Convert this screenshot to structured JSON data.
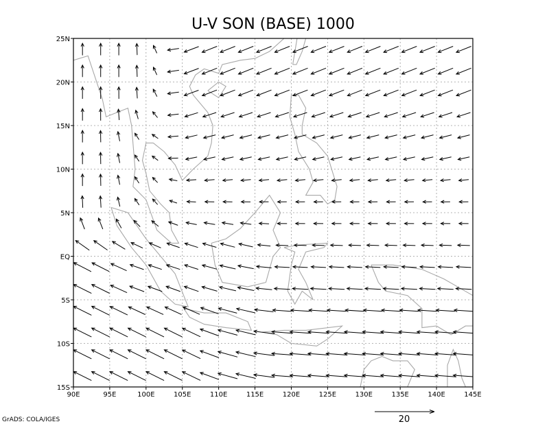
{
  "chart_data": {
    "type": "vector",
    "title": "U-V SON (BASE) 1000",
    "credit": "GrADS: COLA/IGES",
    "x_ticks": [
      "90E",
      "95E",
      "100E",
      "105E",
      "110E",
      "115E",
      "120E",
      "125E",
      "130E",
      "135E",
      "140E",
      "145E"
    ],
    "y_ticks": [
      "25N",
      "20N",
      "15N",
      "10N",
      "5N",
      "EQ",
      "5S",
      "10S",
      "15S"
    ],
    "xlim": [
      90,
      145
    ],
    "ylim": [
      -15,
      25
    ],
    "grid": true,
    "reference_vector": {
      "magnitude": "20",
      "placement": "bottom-right"
    },
    "vector_grid_spacing_deg": 2.5,
    "vector_field_regions": [
      {
        "region": "northeast",
        "lon": [
          105,
          145
        ],
        "lat": [
          13,
          25
        ],
        "u": -10,
        "v": -4
      },
      {
        "region": "central",
        "lon": [
          100,
          145
        ],
        "lat": [
          -2,
          13
        ],
        "u": -6,
        "v": 0
      },
      {
        "region": "west-north",
        "lon": [
          90,
          100
        ],
        "lat": [
          5,
          25
        ],
        "u": 0,
        "v": 8
      },
      {
        "region": "southwest",
        "lon": [
          90,
          112
        ],
        "lat": [
          -15,
          0
        ],
        "u": -12,
        "v": 6
      },
      {
        "region": "southeast",
        "lon": [
          112,
          145
        ],
        "lat": [
          -15,
          -2
        ],
        "u": -14,
        "v": 1
      }
    ],
    "coastlines": [
      [
        [
          90,
          22.5
        ],
        [
          92,
          23
        ],
        [
          94,
          18
        ],
        [
          94.5,
          16
        ],
        [
          96,
          16.5
        ],
        [
          97.5,
          17
        ],
        [
          98,
          15
        ],
        [
          98.3,
          12
        ],
        [
          98.5,
          10
        ],
        [
          98.2,
          8
        ],
        [
          100,
          6.5
        ],
        [
          101.5,
          3
        ],
        [
          103.5,
          1.5
        ],
        [
          104.5,
          1.5
        ],
        [
          103.5,
          3
        ],
        [
          103.2,
          5
        ],
        [
          102,
          6
        ],
        [
          100.5,
          7.5
        ],
        [
          100,
          9.5
        ],
        [
          99.5,
          11
        ],
        [
          100,
          13
        ],
        [
          101,
          13
        ],
        [
          102.5,
          12
        ],
        [
          104,
          10.5
        ],
        [
          105,
          8.7
        ],
        [
          106.5,
          10
        ],
        [
          108.5,
          11.5
        ],
        [
          109,
          13
        ],
        [
          109.2,
          15
        ],
        [
          108.5,
          16.5
        ],
        [
          106.5,
          18.5
        ],
        [
          106,
          19.5
        ],
        [
          106.8,
          20.8
        ],
        [
          108,
          21.5
        ],
        [
          110,
          21
        ],
        [
          110.5,
          22
        ],
        [
          113,
          22.5
        ],
        [
          115,
          22.7
        ],
        [
          117,
          23.5
        ],
        [
          119,
          25
        ],
        [
          120,
          26
        ]
      ],
      [
        [
          95.2,
          5.6
        ],
        [
          97.5,
          5
        ],
        [
          100,
          2
        ],
        [
          102,
          0
        ],
        [
          104,
          -2
        ],
        [
          105.8,
          -5.8
        ],
        [
          104,
          -5.5
        ],
        [
          102,
          -4
        ],
        [
          100,
          -1
        ],
        [
          98,
          1
        ],
        [
          96,
          3.5
        ],
        [
          95.2,
          5.6
        ]
      ],
      [
        [
          105.2,
          -6
        ],
        [
          108,
          -6.5
        ],
        [
          111,
          -6.5
        ],
        [
          114,
          -7.5
        ],
        [
          114.5,
          -8.5
        ],
        [
          111,
          -8.2
        ],
        [
          108,
          -7.8
        ],
        [
          106,
          -7
        ],
        [
          105.2,
          -6
        ]
      ],
      [
        [
          109,
          1.5
        ],
        [
          109.5,
          -1
        ],
        [
          110.5,
          -3
        ],
        [
          114,
          -3.5
        ],
        [
          116.5,
          -3
        ],
        [
          117.5,
          0
        ],
        [
          118.5,
          1
        ],
        [
          117.5,
          3
        ],
        [
          118.5,
          5
        ],
        [
          117,
          7
        ],
        [
          116,
          6
        ],
        [
          115,
          5
        ],
        [
          113,
          3.2
        ],
        [
          111,
          2
        ],
        [
          109,
          1.5
        ]
      ],
      [
        [
          119,
          1
        ],
        [
          120.5,
          0.5
        ],
        [
          120,
          -1
        ],
        [
          119.5,
          -4
        ],
        [
          120.5,
          -5.5
        ],
        [
          121.5,
          -4
        ],
        [
          123,
          -5
        ],
        [
          122,
          -3
        ],
        [
          121,
          -1.5
        ],
        [
          122,
          0.5
        ],
        [
          124.5,
          1
        ],
        [
          125,
          1.5
        ],
        [
          121,
          1.3
        ],
        [
          119,
          1
        ]
      ],
      [
        [
          120,
          18.5
        ],
        [
          121,
          18.5
        ],
        [
          122,
          17
        ],
        [
          121.5,
          15
        ],
        [
          121.5,
          14
        ],
        [
          123.5,
          13
        ],
        [
          124,
          12.5
        ],
        [
          125,
          11.5
        ],
        [
          126.3,
          8
        ],
        [
          126,
          6.5
        ],
        [
          125,
          6
        ],
        [
          124,
          7
        ],
        [
          122,
          7
        ],
        [
          123,
          8.5
        ],
        [
          122.5,
          10
        ],
        [
          121,
          12
        ],
        [
          120.5,
          14
        ],
        [
          119.8,
          16
        ],
        [
          120,
          18.5
        ]
      ],
      [
        [
          120.2,
          22
        ],
        [
          120.8,
          25
        ],
        [
          122,
          25
        ],
        [
          121.5,
          23.5
        ],
        [
          120.7,
          22
        ],
        [
          120.2,
          22
        ]
      ],
      [
        [
          108.5,
          19
        ],
        [
          110,
          18.2
        ],
        [
          111,
          19.5
        ],
        [
          110,
          20
        ],
        [
          108.5,
          19
        ]
      ],
      [
        [
          131,
          -1
        ],
        [
          134,
          -1
        ],
        [
          138,
          -1.5
        ],
        [
          141,
          -2.6
        ],
        [
          145,
          -4.5
        ],
        [
          146,
          -6
        ],
        [
          147,
          -8
        ],
        [
          144,
          -8
        ],
        [
          142,
          -9
        ],
        [
          140,
          -8
        ],
        [
          138,
          -8.2
        ],
        [
          138,
          -6
        ],
        [
          136,
          -4.5
        ],
        [
          133,
          -4
        ],
        [
          132,
          -3
        ],
        [
          131,
          -1
        ]
      ],
      [
        [
          119,
          -8.5
        ],
        [
          122,
          -8.5
        ],
        [
          124,
          -8.3
        ],
        [
          127,
          -8
        ],
        [
          125,
          -9.5
        ],
        [
          123.5,
          -10.3
        ],
        [
          120,
          -10
        ],
        [
          118,
          -9
        ],
        [
          116,
          -8.7
        ],
        [
          119,
          -8.5
        ]
      ],
      [
        [
          129.5,
          -15
        ],
        [
          130,
          -13
        ],
        [
          131,
          -12
        ],
        [
          132.5,
          -11.5
        ],
        [
          134,
          -12
        ],
        [
          136,
          -12
        ],
        [
          137,
          -13
        ],
        [
          136,
          -15
        ]
      ],
      [
        [
          141.5,
          -15
        ],
        [
          141.5,
          -12.5
        ],
        [
          142.3,
          -10.7
        ],
        [
          143,
          -12
        ],
        [
          143.5,
          -14
        ],
        [
          144,
          -15
        ]
      ]
    ]
  }
}
